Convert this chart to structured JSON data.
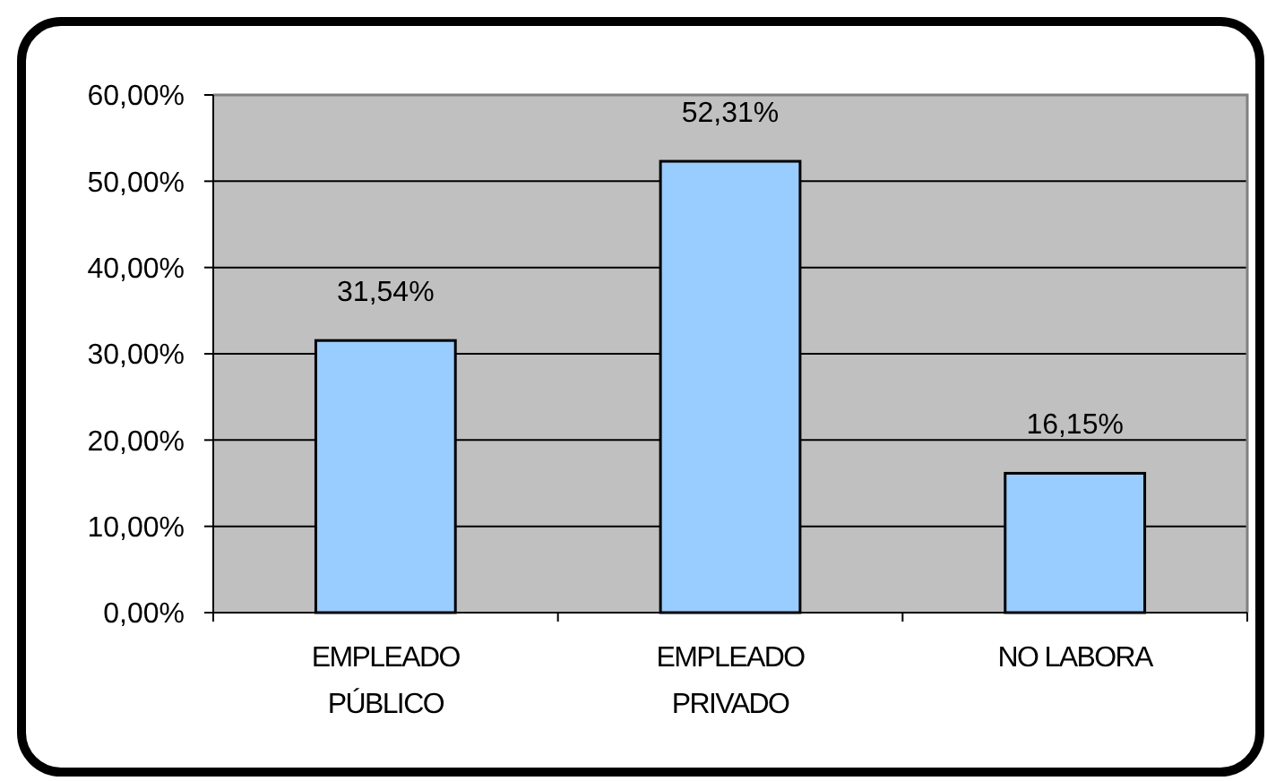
{
  "chart_data": {
    "type": "bar",
    "categories": [
      "EMPLEADO PÚBLICO",
      "EMPLEADO PRIVADO",
      "NO LABORA"
    ],
    "values": [
      31.54,
      52.31,
      16.15
    ],
    "color": "#99ccff",
    "value_labels": [
      "31,54%",
      "52,31%",
      "16,15%"
    ],
    "ylim": [
      0,
      60
    ],
    "yticks": [
      {
        "value": 0,
        "label": "0,00%"
      },
      {
        "value": 10,
        "label": "10,00%"
      },
      {
        "value": 20,
        "label": "20,00%"
      },
      {
        "value": 30,
        "label": "30,00%"
      },
      {
        "value": 40,
        "label": "40,00%"
      },
      {
        "value": 50,
        "label": "50,00%"
      },
      {
        "value": 60,
        "label": "60,00%"
      }
    ],
    "grid": "y"
  }
}
